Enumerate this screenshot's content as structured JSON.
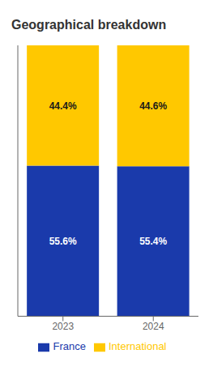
{
  "chart_data": {
    "type": "bar",
    "title": "Geographical breakdown",
    "categories": [
      "2023",
      "2024"
    ],
    "series": [
      {
        "name": "France",
        "color": "#1a3aab",
        "values": [
          55.6,
          55.4
        ],
        "value_labels": [
          "55.6%",
          "55.4%"
        ]
      },
      {
        "name": "International",
        "color": "#ffc800",
        "values": [
          44.4,
          44.6
        ],
        "value_labels": [
          "44.4%",
          "44.6%"
        ]
      }
    ],
    "stacked": true,
    "ylim": [
      0,
      100
    ],
    "yticks": [],
    "data_labels": true,
    "tick_labels": "x",
    "legend": "bottom",
    "grid": false
  }
}
